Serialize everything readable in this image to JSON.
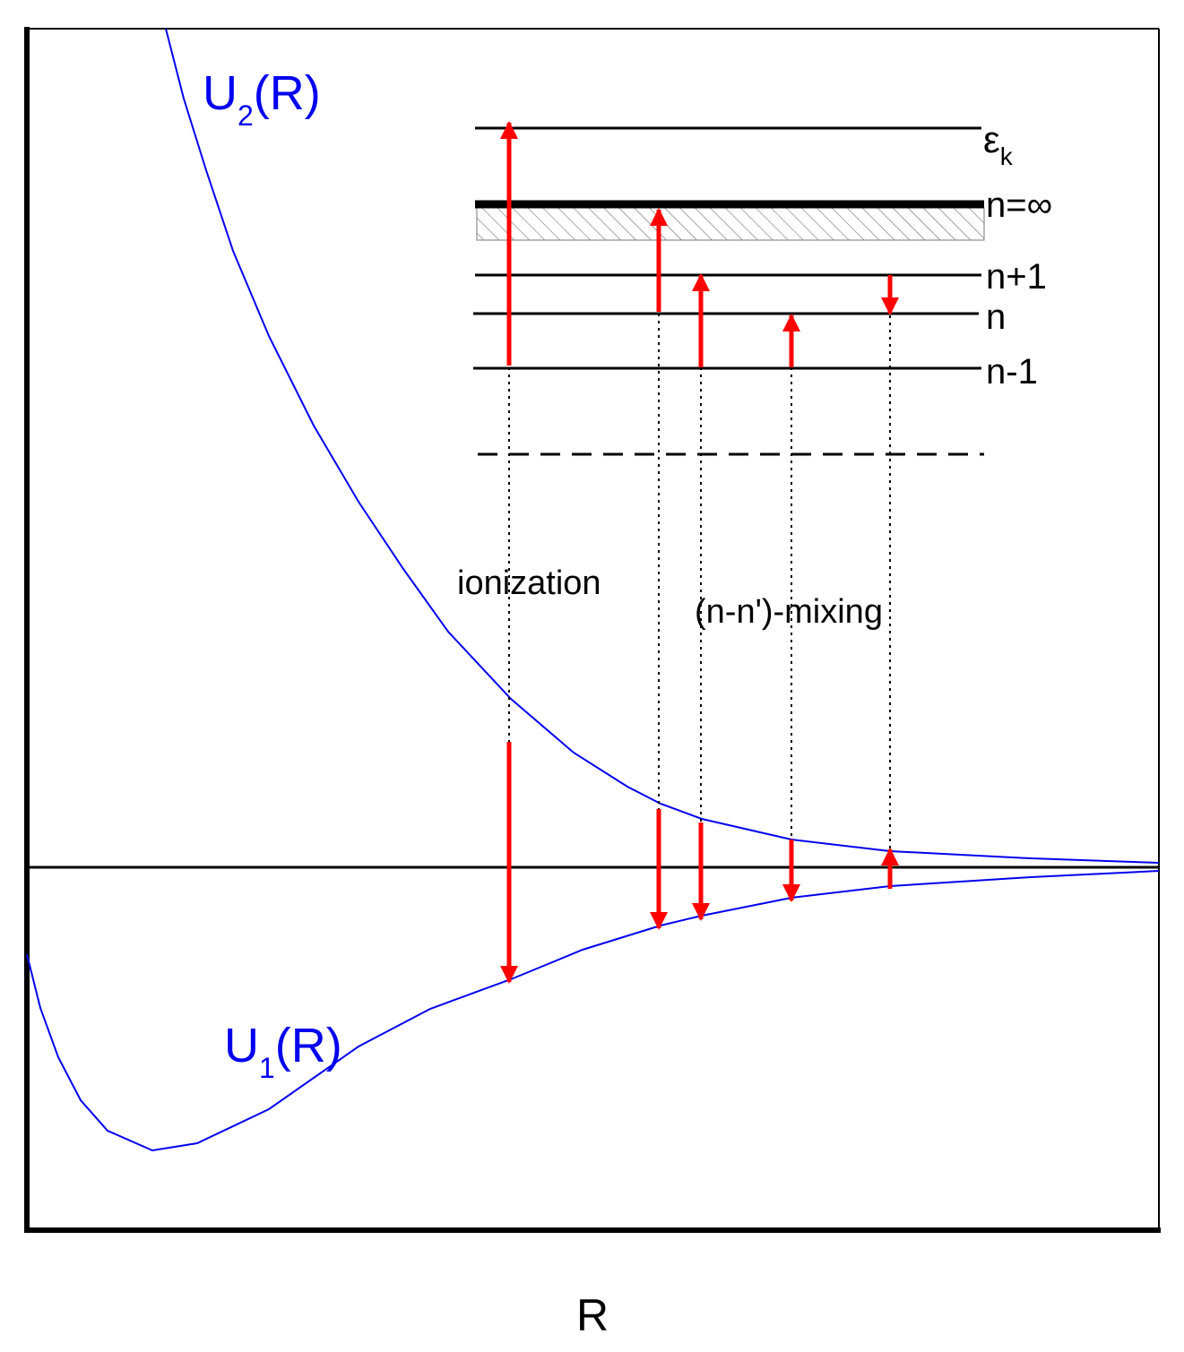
{
  "curves": [
    {
      "base": "U",
      "sub": "2",
      "suffix": "(R)"
    },
    {
      "base": "U",
      "sub": "1",
      "suffix": "(R)"
    }
  ],
  "levels": {
    "epsilon": {
      "base": "ε",
      "sub": "k"
    },
    "infinity": "n=∞",
    "upper": "n+1",
    "middle": "n",
    "lower": "n-1"
  },
  "processes": {
    "ionization": "ionization",
    "mixing": "(n-n')-mixing"
  },
  "axis_label": "R"
}
